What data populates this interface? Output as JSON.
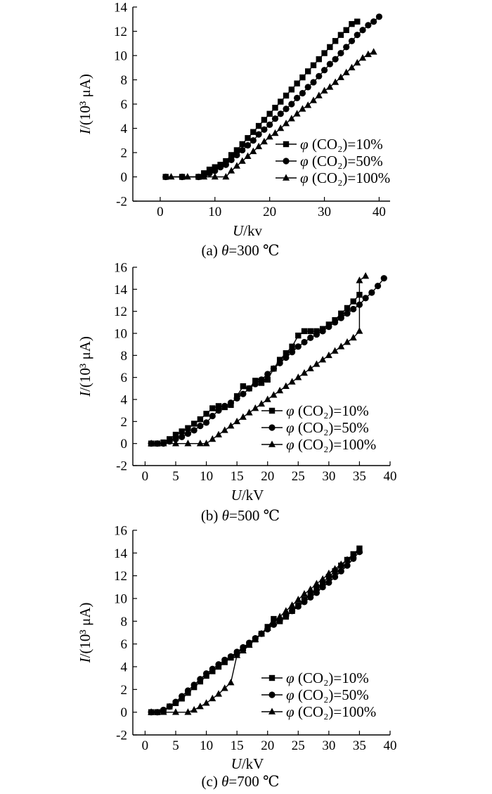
{
  "chart_data": [
    {
      "type": "line",
      "caption": "(a) θ=300 ℃",
      "xlabel": "U/kv",
      "ylabel": "I/(10³ μA)",
      "xlim": [
        -5,
        42
      ],
      "ylim": [
        -2,
        14
      ],
      "xticks": [
        "0",
        "10",
        "20",
        "30",
        "40"
      ],
      "yticks": [
        "-2",
        "0",
        "2",
        "4",
        "6",
        "8",
        "10",
        "12",
        "14"
      ],
      "legend_position": "right",
      "series": [
        {
          "name": "φ (CO₂)=10%",
          "marker": "square",
          "x": [
            1,
            4,
            7,
            8,
            9,
            10,
            11,
            12,
            13,
            14,
            15,
            16,
            17,
            18,
            19,
            20,
            21,
            22,
            23,
            24,
            25,
            26,
            27,
            28,
            29,
            30,
            31,
            32,
            33,
            34,
            35,
            36
          ],
          "y": [
            0,
            0,
            0,
            0.3,
            0.6,
            0.8,
            1.0,
            1.3,
            1.8,
            2.2,
            2.7,
            3.2,
            3.7,
            4.2,
            4.7,
            5.2,
            5.7,
            6.2,
            6.7,
            7.2,
            7.7,
            8.2,
            8.7,
            9.2,
            9.7,
            10.2,
            10.7,
            11.2,
            11.7,
            12.1,
            12.6,
            12.8
          ]
        },
        {
          "name": "φ (CO₂)=50%",
          "marker": "circle",
          "x": [
            1,
            4,
            7,
            8,
            9,
            10,
            11,
            12,
            13,
            14,
            15,
            16,
            17,
            18,
            19,
            20,
            21,
            22,
            23,
            24,
            25,
            26,
            27,
            28,
            29,
            30,
            31,
            32,
            33,
            34,
            35,
            36,
            37,
            38,
            39,
            40
          ],
          "y": [
            0,
            0,
            0,
            0.1,
            0.3,
            0.5,
            0.8,
            1.0,
            1.4,
            1.8,
            2.2,
            2.6,
            3.0,
            3.5,
            3.9,
            4.3,
            4.8,
            5.2,
            5.6,
            6.0,
            6.5,
            6.9,
            7.4,
            7.8,
            8.3,
            8.8,
            9.3,
            9.7,
            10.2,
            10.7,
            11.2,
            11.7,
            12.1,
            12.5,
            12.8,
            13.2
          ]
        },
        {
          "name": "φ (CO₂)=100%",
          "marker": "triangle",
          "x": [
            2,
            5,
            8,
            10,
            12,
            13,
            14,
            15,
            16,
            17,
            18,
            19,
            20,
            21,
            22,
            23,
            24,
            25,
            26,
            27,
            28,
            29,
            30,
            31,
            32,
            33,
            34,
            35,
            36,
            37,
            38,
            39
          ],
          "y": [
            0,
            0,
            0,
            0,
            0,
            0.5,
            0.9,
            1.3,
            1.7,
            2.1,
            2.5,
            2.9,
            3.3,
            3.6,
            4.0,
            4.4,
            4.8,
            5.2,
            5.6,
            5.9,
            6.3,
            6.7,
            7.1,
            7.4,
            7.8,
            8.2,
            8.6,
            9.0,
            9.4,
            9.8,
            10.1,
            10.3
          ]
        }
      ]
    },
    {
      "type": "line",
      "caption": "(b) θ=500 ℃",
      "xlabel": "U/kV",
      "ylabel": "I/(10³ μA)",
      "xlim": [
        -2,
        40
      ],
      "ylim": [
        -2,
        16
      ],
      "xticks": [
        "0",
        "5",
        "10",
        "15",
        "20",
        "25",
        "30",
        "35",
        "40"
      ],
      "yticks": [
        "-2",
        "0",
        "2",
        "4",
        "6",
        "8",
        "10",
        "12",
        "14",
        "16"
      ],
      "legend_position": "right",
      "series": [
        {
          "name": "φ (CO₂)=10%",
          "marker": "square",
          "x": [
            1,
            2,
            3,
            4,
            5,
            6,
            7,
            8,
            9,
            10,
            11,
            12,
            13,
            14,
            15,
            16,
            17,
            18,
            19,
            20,
            21,
            22,
            23,
            24,
            25,
            26,
            27,
            28,
            29,
            30,
            31,
            32,
            33,
            34,
            35
          ],
          "y": [
            0,
            0,
            0.1,
            0.4,
            0.8,
            1.1,
            1.4,
            1.8,
            2.2,
            2.7,
            3.2,
            3.4,
            3.3,
            3.5,
            4.3,
            5.2,
            5.0,
            5.7,
            5.5,
            5.8,
            6.8,
            7.6,
            8.2,
            8.8,
            9.8,
            10.2,
            10.2,
            10.2,
            10.4,
            10.8,
            11.2,
            11.8,
            12.3,
            12.9,
            13.5
          ]
        },
        {
          "name": "φ (CO₂)=50%",
          "marker": "circle",
          "x": [
            1,
            2,
            3,
            4,
            5,
            6,
            7,
            8,
            9,
            10,
            11,
            12,
            13,
            14,
            15,
            16,
            17,
            18,
            19,
            20,
            21,
            22,
            23,
            24,
            25,
            26,
            27,
            28,
            29,
            30,
            31,
            32,
            33,
            34,
            35,
            36,
            37,
            38,
            39
          ],
          "y": [
            0,
            0,
            0,
            0.2,
            0.4,
            0.6,
            0.9,
            1.2,
            1.6,
            1.9,
            2.5,
            3.0,
            3.4,
            3.7,
            4.1,
            4.5,
            5.0,
            5.4,
            5.8,
            6.3,
            6.8,
            7.3,
            7.8,
            8.3,
            8.8,
            9.2,
            9.6,
            9.9,
            10.2,
            10.6,
            11.0,
            11.4,
            11.8,
            12.2,
            12.6,
            13.2,
            13.7,
            14.3,
            15.0
          ]
        },
        {
          "name": "φ (CO₂)=100%",
          "marker": "triangle",
          "x": [
            1,
            3,
            5,
            7,
            9,
            10,
            11,
            12,
            13,
            14,
            15,
            16,
            17,
            18,
            19,
            20,
            21,
            22,
            23,
            24,
            25,
            26,
            27,
            28,
            29,
            30,
            31,
            32,
            33,
            34,
            35,
            35,
            36
          ],
          "y": [
            0,
            0,
            0,
            0,
            0,
            0,
            0.4,
            0.8,
            1.2,
            1.6,
            2.0,
            2.4,
            2.8,
            3.2,
            3.6,
            4.0,
            4.4,
            4.8,
            5.2,
            5.6,
            6.0,
            6.4,
            6.8,
            7.2,
            7.6,
            8.0,
            8.4,
            8.8,
            9.2,
            9.6,
            10.2,
            14.8,
            15.2
          ]
        }
      ]
    },
    {
      "type": "line",
      "caption": "(c) θ=700 ℃",
      "xlabel": "U/kV",
      "ylabel": "I/(10³ μA)",
      "xlim": [
        -2,
        40
      ],
      "ylim": [
        -2,
        16
      ],
      "xticks": [
        "0",
        "5",
        "10",
        "15",
        "20",
        "25",
        "30",
        "35",
        "40"
      ],
      "yticks": [
        "-2",
        "0",
        "2",
        "4",
        "6",
        "8",
        "10",
        "12",
        "14",
        "16"
      ],
      "legend_position": "right",
      "series": [
        {
          "name": "φ (CO₂)=10%",
          "marker": "square",
          "x": [
            1,
            2,
            3,
            4,
            5,
            6,
            7,
            8,
            9,
            10,
            11,
            12,
            13,
            14,
            15,
            16,
            17,
            18,
            19,
            20,
            21,
            22,
            23,
            24,
            25,
            26,
            27,
            28,
            29,
            30,
            31,
            32,
            33,
            34,
            35
          ],
          "y": [
            0,
            0,
            0.1,
            0.5,
            0.8,
            1.2,
            1.7,
            2.2,
            2.7,
            3.2,
            3.6,
            4.0,
            4.4,
            4.8,
            5.2,
            5.6,
            6.0,
            6.4,
            6.9,
            7.5,
            8.2,
            8.0,
            8.4,
            8.9,
            9.4,
            9.9,
            10.4,
            10.9,
            11.4,
            11.9,
            12.4,
            12.9,
            13.4,
            13.9,
            14.4
          ]
        },
        {
          "name": "φ (CO₂)=50%",
          "marker": "circle",
          "x": [
            1,
            2,
            3,
            4,
            5,
            6,
            7,
            8,
            9,
            10,
            11,
            12,
            13,
            14,
            15,
            16,
            17,
            18,
            19,
            20,
            21,
            22,
            23,
            24,
            25,
            26,
            27,
            28,
            29,
            30,
            31,
            32,
            33,
            34,
            35
          ],
          "y": [
            0,
            0,
            0.2,
            0.5,
            0.9,
            1.4,
            1.9,
            2.4,
            2.9,
            3.4,
            3.8,
            4.2,
            4.6,
            4.9,
            5.3,
            5.7,
            6.1,
            6.5,
            6.9,
            7.3,
            7.7,
            8.1,
            8.5,
            8.9,
            9.3,
            9.7,
            10.1,
            10.5,
            11.0,
            11.4,
            11.9,
            12.4,
            12.9,
            13.5,
            14.1
          ]
        },
        {
          "name": "φ (CO₂)=100%",
          "marker": "triangle",
          "x": [
            1,
            3,
            5,
            7,
            8,
            9,
            10,
            11,
            12,
            13,
            14,
            15,
            16,
            17,
            18,
            19,
            20,
            21,
            22,
            23,
            24,
            25,
            26,
            27,
            28,
            29,
            30,
            31,
            32,
            33,
            34,
            35
          ],
          "y": [
            0,
            0,
            0,
            0,
            0.2,
            0.5,
            0.8,
            1.2,
            1.6,
            2.1,
            2.6,
            5.0,
            5.4,
            5.9,
            6.4,
            6.9,
            7.4,
            7.9,
            8.4,
            8.9,
            9.4,
            9.9,
            10.4,
            10.8,
            11.3,
            11.7,
            12.2,
            12.6,
            13.0,
            13.4,
            13.8,
            14.2
          ]
        }
      ]
    }
  ]
}
